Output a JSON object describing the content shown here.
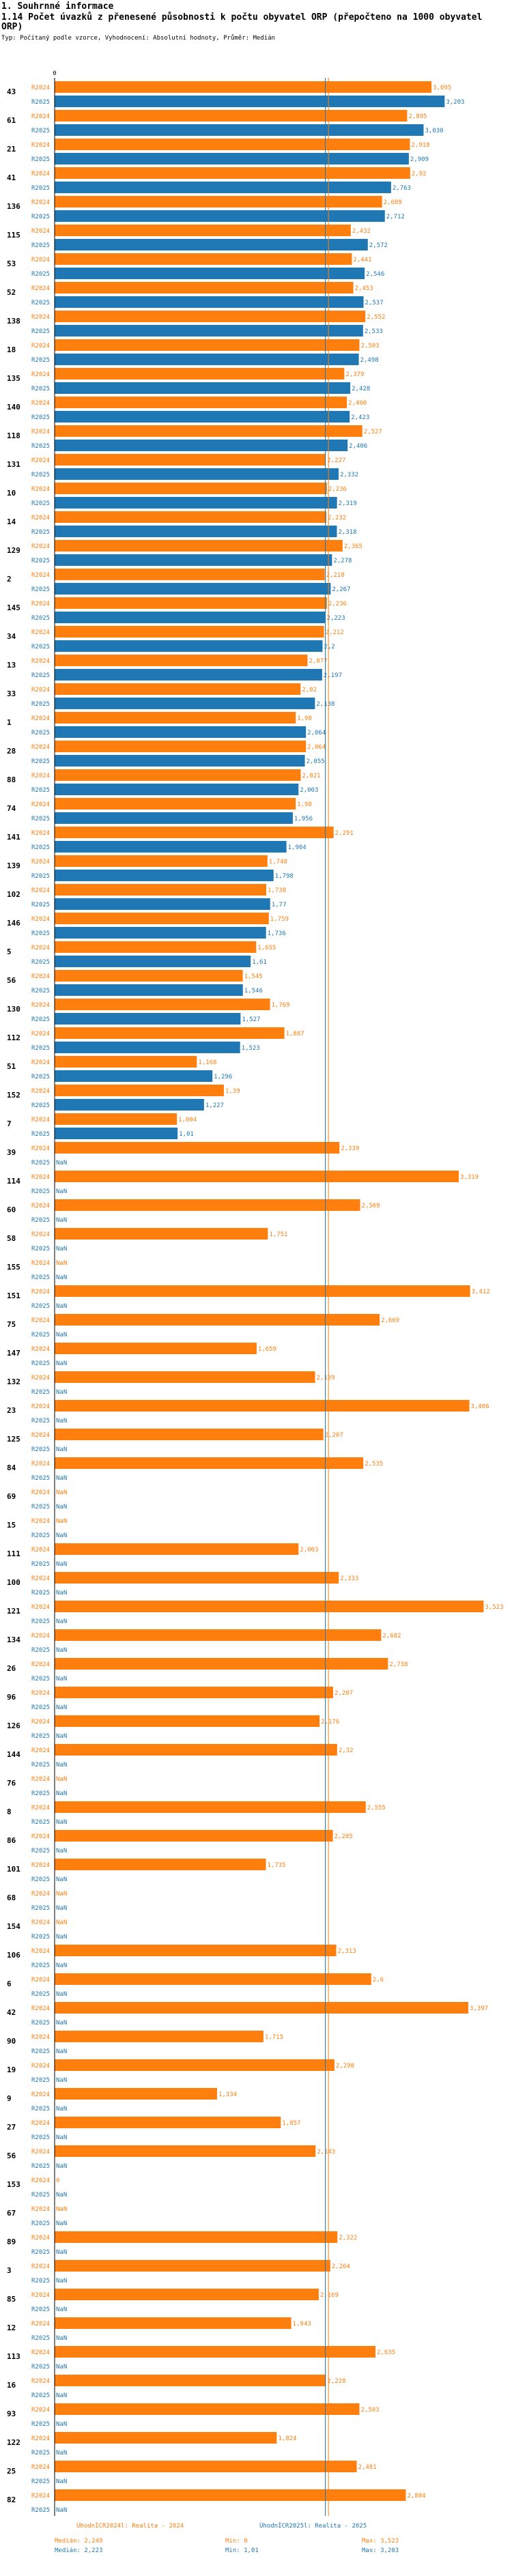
{
  "header": {
    "section": "1. Souhrnné informace",
    "title": "1.14 Počet úvazků z přenesené působnosti k počtu obyvatel ORP (přepočteno na 1000 obyvatel ORP)",
    "subtitle": "Typ: Počítaný podle vzorce, Vyhodnocení: Absolutní hodnoty, Průměr: Medián"
  },
  "chart_data": {
    "type": "bar",
    "orientation": "horizontal",
    "axis_zero_label": "0",
    "series": [
      {
        "name": "R2024",
        "color": "#ff7f0e"
      },
      {
        "name": "R2025",
        "color": "#1f77b4"
      }
    ],
    "median_2024": 2.249,
    "median_2025": 2.223,
    "xlim": [
      0,
      3.7
    ],
    "groups": [
      {
        "id": "43",
        "v2024": 3.095,
        "l2024": "3,095",
        "v2025": 3.203,
        "l2025": "3,203"
      },
      {
        "id": "61",
        "v2024": 2.895,
        "l2024": "2,895",
        "v2025": 3.03,
        "l2025": "3,030"
      },
      {
        "id": "21",
        "v2024": 2.918,
        "l2024": "2,918",
        "v2025": 2.909,
        "l2025": "2,909"
      },
      {
        "id": "41",
        "v2024": 2.92,
        "l2024": "2,92",
        "v2025": 2.763,
        "l2025": "2,763"
      },
      {
        "id": "136",
        "v2024": 2.689,
        "l2024": "2,689",
        "v2025": 2.712,
        "l2025": "2,712"
      },
      {
        "id": "115",
        "v2024": 2.432,
        "l2024": "2,432",
        "v2025": 2.572,
        "l2025": "2,572"
      },
      {
        "id": "53",
        "v2024": 2.441,
        "l2024": "2,441",
        "v2025": 2.546,
        "l2025": "2,546"
      },
      {
        "id": "52",
        "v2024": 2.453,
        "l2024": "2,453",
        "v2025": 2.537,
        "l2025": "2,537"
      },
      {
        "id": "138",
        "v2024": 2.552,
        "l2024": "2,552",
        "v2025": 2.533,
        "l2025": "2,533"
      },
      {
        "id": "18",
        "v2024": 2.503,
        "l2024": "2,503",
        "v2025": 2.498,
        "l2025": "2,498"
      },
      {
        "id": "135",
        "v2024": 2.379,
        "l2024": "2,379",
        "v2025": 2.428,
        "l2025": "2,428"
      },
      {
        "id": "140",
        "v2024": 2.4,
        "l2024": "2,400",
        "v2025": 2.423,
        "l2025": "2,423"
      },
      {
        "id": "118",
        "v2024": 2.527,
        "l2024": "2,527",
        "v2025": 2.406,
        "l2025": "2,406"
      },
      {
        "id": "131",
        "v2024": 2.227,
        "l2024": "2,227",
        "v2025": 2.332,
        "l2025": "2,332"
      },
      {
        "id": "10",
        "v2024": 2.236,
        "l2024": "2,236",
        "v2025": 2.319,
        "l2025": "2,319"
      },
      {
        "id": "14",
        "v2024": 2.232,
        "l2024": "2,232",
        "v2025": 2.318,
        "l2025": "2,318"
      },
      {
        "id": "129",
        "v2024": 2.365,
        "l2024": "2,365",
        "v2025": 2.278,
        "l2025": "2,278"
      },
      {
        "id": "2",
        "v2024": 2.218,
        "l2024": "2,218",
        "v2025": 2.267,
        "l2025": "2,267"
      },
      {
        "id": "145",
        "v2024": 2.236,
        "l2024": "2,236",
        "v2025": 2.223,
        "l2025": "2,223"
      },
      {
        "id": "34",
        "v2024": 2.212,
        "l2024": "2,212",
        "v2025": 2.2,
        "l2025": "2,2"
      },
      {
        "id": "13",
        "v2024": 2.077,
        "l2024": "2,077",
        "v2025": 2.197,
        "l2025": "2,197"
      },
      {
        "id": "33",
        "v2024": 2.02,
        "l2024": "2,02",
        "v2025": 2.138,
        "l2025": "2,138"
      },
      {
        "id": "1",
        "v2024": 1.98,
        "l2024": "1,98",
        "v2025": 2.064,
        "l2025": "2,064"
      },
      {
        "id": "28",
        "v2024": 2.064,
        "l2024": "2,064",
        "v2025": 2.055,
        "l2025": "2,055"
      },
      {
        "id": "88",
        "v2024": 2.021,
        "l2024": "2,021",
        "v2025": 2.003,
        "l2025": "2,003"
      },
      {
        "id": "74",
        "v2024": 1.98,
        "l2024": "1,98",
        "v2025": 1.956,
        "l2025": "1,956"
      },
      {
        "id": "141",
        "v2024": 2.291,
        "l2024": "2,291",
        "v2025": 1.904,
        "l2025": "1,904"
      },
      {
        "id": "139",
        "v2024": 1.748,
        "l2024": "1,748",
        "v2025": 1.798,
        "l2025": "1,798"
      },
      {
        "id": "102",
        "v2024": 1.738,
        "l2024": "1,738",
        "v2025": 1.77,
        "l2025": "1,77"
      },
      {
        "id": "146",
        "v2024": 1.759,
        "l2024": "1,759",
        "v2025": 1.736,
        "l2025": "1,736"
      },
      {
        "id": "5",
        "v2024": 1.655,
        "l2024": "1,655",
        "v2025": 1.61,
        "l2025": "1,61"
      },
      {
        "id": "56",
        "v2024": 1.545,
        "l2024": "1,545",
        "v2025": 1.546,
        "l2025": "1,546"
      },
      {
        "id": "130",
        "v2024": 1.769,
        "l2024": "1,769",
        "v2025": 1.527,
        "l2025": "1,527"
      },
      {
        "id": "112",
        "v2024": 1.887,
        "l2024": "1,887",
        "v2025": 1.523,
        "l2025": "1,523"
      },
      {
        "id": "51",
        "v2024": 1.168,
        "l2024": "1,168",
        "v2025": 1.296,
        "l2025": "1,296"
      },
      {
        "id": "152",
        "v2024": 1.39,
        "l2024": "1,39",
        "v2025": 1.227,
        "l2025": "1,227"
      },
      {
        "id": "7",
        "v2024": 1.004,
        "l2024": "1,004",
        "v2025": 1.01,
        "l2025": "1,01"
      },
      {
        "id": "39",
        "v2024": 2.339,
        "l2024": "2,339",
        "v2025": null,
        "l2025": "NaN"
      },
      {
        "id": "114",
        "v2024": 3.319,
        "l2024": "3,319",
        "v2025": null,
        "l2025": "NaN"
      },
      {
        "id": "60",
        "v2024": 2.509,
        "l2024": "2,509",
        "v2025": null,
        "l2025": "NaN"
      },
      {
        "id": "58",
        "v2024": 1.751,
        "l2024": "1,751",
        "v2025": null,
        "l2025": "NaN"
      },
      {
        "id": "155",
        "v2024": null,
        "l2024": "NaN",
        "v2025": null,
        "l2025": "NaN"
      },
      {
        "id": "151",
        "v2024": 3.412,
        "l2024": "3,412",
        "v2025": null,
        "l2025": "NaN"
      },
      {
        "id": "75",
        "v2024": 2.669,
        "l2024": "2,669",
        "v2025": null,
        "l2025": "NaN"
      },
      {
        "id": "147",
        "v2024": 1.659,
        "l2024": "1,659",
        "v2025": null,
        "l2025": "NaN"
      },
      {
        "id": "132",
        "v2024": 2.139,
        "l2024": "2,139",
        "v2025": null,
        "l2025": "NaN"
      },
      {
        "id": "23",
        "v2024": 3.406,
        "l2024": "3,406",
        "v2025": null,
        "l2025": "NaN"
      },
      {
        "id": "125",
        "v2024": 2.207,
        "l2024": "2,207",
        "v2025": null,
        "l2025": "NaN"
      },
      {
        "id": "84",
        "v2024": 2.535,
        "l2024": "2,535",
        "v2025": null,
        "l2025": "NaN"
      },
      {
        "id": "69",
        "v2024": null,
        "l2024": "NaN",
        "v2025": null,
        "l2025": "NaN"
      },
      {
        "id": "15",
        "v2024": null,
        "l2024": "NaN",
        "v2025": null,
        "l2025": "NaN"
      },
      {
        "id": "111",
        "v2024": 2.003,
        "l2024": "2,003",
        "v2025": null,
        "l2025": "NaN"
      },
      {
        "id": "100",
        "v2024": 2.333,
        "l2024": "2,333",
        "v2025": null,
        "l2025": "NaN"
      },
      {
        "id": "121",
        "v2024": 3.523,
        "l2024": "3,523",
        "v2025": null,
        "l2025": "NaN"
      },
      {
        "id": "134",
        "v2024": 2.682,
        "l2024": "2,682",
        "v2025": null,
        "l2025": "NaN"
      },
      {
        "id": "26",
        "v2024": 2.738,
        "l2024": "2,738",
        "v2025": null,
        "l2025": "NaN"
      },
      {
        "id": "96",
        "v2024": 2.287,
        "l2024": "2,287",
        "v2025": null,
        "l2025": "NaN"
      },
      {
        "id": "126",
        "v2024": 2.176,
        "l2024": "2,176",
        "v2025": null,
        "l2025": "NaN"
      },
      {
        "id": "144",
        "v2024": 2.32,
        "l2024": "2,32",
        "v2025": null,
        "l2025": "NaN"
      },
      {
        "id": "76",
        "v2024": null,
        "l2024": "NaN",
        "v2025": null,
        "l2025": "NaN"
      },
      {
        "id": "8",
        "v2024": 2.555,
        "l2024": "2,555",
        "v2025": null,
        "l2025": "NaN"
      },
      {
        "id": "86",
        "v2024": 2.285,
        "l2024": "2,285",
        "v2025": null,
        "l2025": "NaN"
      },
      {
        "id": "101",
        "v2024": 1.735,
        "l2024": "1,735",
        "v2025": null,
        "l2025": "NaN"
      },
      {
        "id": "68",
        "v2024": null,
        "l2024": "NaN",
        "v2025": null,
        "l2025": "NaN"
      },
      {
        "id": "154",
        "v2024": null,
        "l2024": "NaN",
        "v2025": null,
        "l2025": "NaN"
      },
      {
        "id": "106",
        "v2024": 2.313,
        "l2024": "2,313",
        "v2025": null,
        "l2025": "NaN"
      },
      {
        "id": "6",
        "v2024": 2.6,
        "l2024": "2,6",
        "v2025": null,
        "l2025": "NaN"
      },
      {
        "id": "42",
        "v2024": 3.397,
        "l2024": "3,397",
        "v2025": null,
        "l2025": "NaN"
      },
      {
        "id": "90",
        "v2024": 1.715,
        "l2024": "1,715",
        "v2025": null,
        "l2025": "NaN"
      },
      {
        "id": "19",
        "v2024": 2.298,
        "l2024": "2,298",
        "v2025": null,
        "l2025": "NaN"
      },
      {
        "id": "9",
        "v2024": 1.334,
        "l2024": "1,334",
        "v2025": null,
        "l2025": "NaN"
      },
      {
        "id": "27",
        "v2024": 1.857,
        "l2024": "1,857",
        "v2025": null,
        "l2025": "NaN"
      },
      {
        "id": "56",
        "v2024": 2.143,
        "l2024": "2,143",
        "v2025": null,
        "l2025": "NaN"
      },
      {
        "id": "153",
        "v2024": 0,
        "l2024": "0",
        "v2025": null,
        "l2025": "NaN"
      },
      {
        "id": "67",
        "v2024": null,
        "l2024": "NaN",
        "v2025": null,
        "l2025": "NaN"
      },
      {
        "id": "89",
        "v2024": 2.322,
        "l2024": "2,322",
        "v2025": null,
        "l2025": "NaN"
      },
      {
        "id": "3",
        "v2024": 2.264,
        "l2024": "2,264",
        "v2025": null,
        "l2025": "NaN"
      },
      {
        "id": "85",
        "v2024": 2.169,
        "l2024": "2,169",
        "v2025": null,
        "l2025": "NaN"
      },
      {
        "id": "12",
        "v2024": 1.943,
        "l2024": "1,943",
        "v2025": null,
        "l2025": "NaN"
      },
      {
        "id": "113",
        "v2024": 2.635,
        "l2024": "2,635",
        "v2025": null,
        "l2025": "NaN"
      },
      {
        "id": "16",
        "v2024": 2.228,
        "l2024": "2,228",
        "v2025": null,
        "l2025": "NaN"
      },
      {
        "id": "93",
        "v2024": 2.503,
        "l2024": "2,503",
        "v2025": null,
        "l2025": "NaN"
      },
      {
        "id": "122",
        "v2024": 1.824,
        "l2024": "1,824",
        "v2025": null,
        "l2025": "NaN"
      },
      {
        "id": "25",
        "v2024": 2.481,
        "l2024": "2,481",
        "v2025": null,
        "l2025": "NaN"
      },
      {
        "id": "82",
        "v2024": 2.884,
        "l2024": "2,884",
        "v2025": null,
        "l2025": "NaN"
      }
    ]
  },
  "legend": {
    "s2024_label": "ÚhodnÍCR2024l: Realita - 2024",
    "s2025_label": "ÚhodnÍCR2025l: Realita - 2025",
    "median_2024": "Medián: 2,249",
    "median_2025": "Medián: 2,223",
    "min_2024": "Min: 0",
    "min_2025": "Min: 1,01",
    "max_2024": "Max: 3,523",
    "max_2025": "Max: 3,203"
  }
}
